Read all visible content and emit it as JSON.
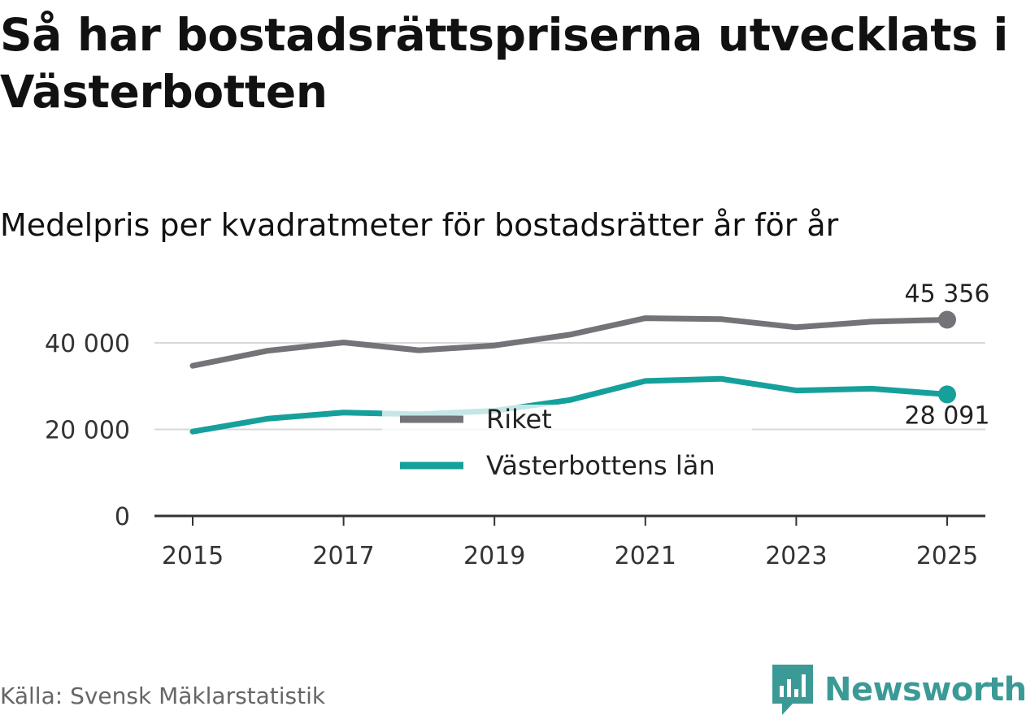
{
  "title": "Så har bostadsrättspriserna utvecklats i Västerbotten",
  "subtitle": "Medelpris per kvadratmeter för bostadsrätter år för år",
  "source": "Källa: Svensk Mäklarstatistik",
  "brand": "Newsworthy",
  "chart_data": {
    "type": "line",
    "title": "Så har bostadsrättspriserna utvecklats i Västerbotten",
    "subtitle": "Medelpris per kvadratmeter för bostadsrätter år för år",
    "x": [
      2015,
      2016,
      2017,
      2018,
      2019,
      2020,
      2021,
      2022,
      2023,
      2024,
      2025
    ],
    "xticks": [
      "2015",
      "2017",
      "2019",
      "2021",
      "2023",
      "2025"
    ],
    "yticks": [
      "0",
      "20 000",
      "40 000"
    ],
    "ylim": [
      0,
      50000
    ],
    "grid": true,
    "legend_position": "center",
    "series": [
      {
        "name": "Riket",
        "color": "#747378",
        "values": [
          34700,
          38200,
          40100,
          38300,
          39400,
          41900,
          45700,
          45500,
          43600,
          44900,
          45356
        ],
        "end_label": "45 356"
      },
      {
        "name": "Västerbottens län",
        "color": "#16a09b",
        "values": [
          19500,
          22500,
          23900,
          23500,
          24300,
          26800,
          31200,
          31700,
          29000,
          29400,
          28091
        ],
        "end_label": "28 091"
      }
    ]
  }
}
